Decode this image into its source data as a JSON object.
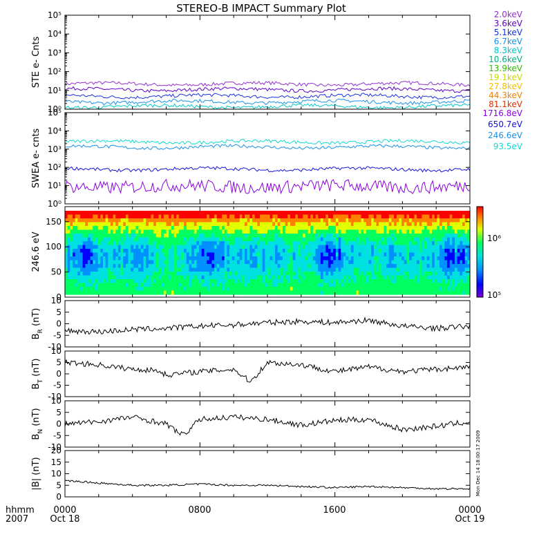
{
  "title": "STEREO-B IMPACT Summary Plot",
  "time_axis": {
    "corner_top": "hhmm",
    "corner_bottom": "2007",
    "ticks": [
      {
        "time": "0000",
        "date": "Oct 18"
      },
      {
        "time": "0800",
        "date": ""
      },
      {
        "time": "1600",
        "date": ""
      },
      {
        "time": "0000",
        "date": "Oct 19"
      }
    ]
  },
  "side_note": "Mon Dec 14 18:00:17 2009",
  "colorbar": {
    "labels": [
      "10⁶",
      "10⁵"
    ],
    "label_values": [
      1000000,
      100000
    ],
    "range": [
      80000,
      2500000
    ],
    "scale": "log",
    "colors": [
      "#7a00d8",
      "#0000ff",
      "#0090ff",
      "#00e0e0",
      "#00ff60",
      "#e0ff00",
      "#ff8000",
      "#ff0000"
    ]
  },
  "legend": {
    "ste": [
      {
        "label": "2.0keV",
        "color": "#9030d0"
      },
      {
        "label": "3.6keV",
        "color": "#5b00c8"
      },
      {
        "label": "5.1keV",
        "color": "#1a30e0"
      },
      {
        "label": "6.7keV",
        "color": "#1890e8"
      },
      {
        "label": "8.3keV",
        "color": "#00c8c8"
      },
      {
        "label": "10.6keV",
        "color": "#00b080"
      },
      {
        "label": "13.9keV",
        "color": "#30c000"
      },
      {
        "label": "19.1keV",
        "color": "#c8d800"
      },
      {
        "label": "27.8keV",
        "color": "#f0c000"
      },
      {
        "label": "44.3keV",
        "color": "#f08000"
      },
      {
        "label": "81.1keV",
        "color": "#e03000"
      }
    ],
    "swea": [
      {
        "label": "1716.8eV",
        "color": "#8a00e0"
      },
      {
        "label": "650.7eV",
        "color": "#1010d8"
      },
      {
        "label": "246.6eV",
        "color": "#1890e8"
      },
      {
        "label": "93.5eV",
        "color": "#10d8d0"
      }
    ]
  },
  "chart_data": [
    {
      "type": "line",
      "panel": "ste",
      "ylabel": "STE e- Cnts",
      "yscale": "log",
      "ylim": [
        1,
        100000
      ],
      "ytick_labels": [
        "10⁰",
        "10¹",
        "10²",
        "10³",
        "10⁴",
        "10⁵"
      ],
      "xlim": [
        "2007-10-18 00:00",
        "2007-10-19 00:00"
      ],
      "series": [
        {
          "name": "2.0keV",
          "color": "#9030d0",
          "level": 22
        },
        {
          "name": "3.6keV",
          "color": "#5b00c8",
          "level": 11
        },
        {
          "name": "5.1keV",
          "color": "#1a30e0",
          "level": 5
        },
        {
          "name": "6.7keV",
          "color": "#1890e8",
          "level": 2.5
        },
        {
          "name": "8.3keV",
          "color": "#00c8c8",
          "level": 1.4
        }
      ]
    },
    {
      "type": "line",
      "panel": "swea",
      "ylabel": "SWEA e- cnts",
      "yscale": "log",
      "ylim": [
        1,
        100000
      ],
      "ytick_labels": [
        "10⁰",
        "10¹",
        "10²",
        "10³",
        "10⁴",
        "10⁵"
      ],
      "xlim": [
        "2007-10-18 00:00",
        "2007-10-19 00:00"
      ],
      "series": [
        {
          "name": "93.5eV",
          "color": "#10d8d0",
          "level": 2500
        },
        {
          "name": "246.6eV",
          "color": "#1890e8",
          "level": 1300
        },
        {
          "name": "650.7eV",
          "color": "#1010d8",
          "level": 80
        },
        {
          "name": "1716.8eV",
          "color": "#8a00e0",
          "level": 9
        }
      ]
    },
    {
      "type": "heatmap",
      "panel": "pad",
      "ylabel": "246.6 eV",
      "ylim": [
        0,
        180
      ],
      "ytick_labels": [
        "0",
        "50",
        "100",
        "150"
      ],
      "ytick_values": [
        0,
        50,
        100,
        150
      ],
      "xlim": [
        "2007-10-18 00:00",
        "2007-10-19 00:00"
      ],
      "z_range": [
        80000,
        2500000
      ]
    },
    {
      "type": "line",
      "panel": "br",
      "ylabel": "B_R (nT)",
      "ylim": [
        -10,
        10
      ],
      "ytick_labels": [
        "10",
        "5",
        "0",
        "-5",
        "-10"
      ],
      "ytick_values": [
        10,
        5,
        0,
        -5,
        -10
      ],
      "x": [
        0,
        2,
        4,
        6,
        8,
        10,
        12,
        14,
        16,
        18,
        20,
        22,
        24
      ],
      "values": [
        -3,
        -3.5,
        -2.5,
        -2,
        -1,
        -0.5,
        0.5,
        1,
        0.5,
        1.5,
        -1,
        -2,
        -1
      ],
      "color": "#000000"
    },
    {
      "type": "line",
      "panel": "bt",
      "ylabel": "B_T (nT)",
      "ylim": [
        -10,
        10
      ],
      "ytick_labels": [
        "10",
        "5",
        "0",
        "-5",
        "-10"
      ],
      "ytick_values": [
        10,
        5,
        0,
        -5,
        -10
      ],
      "x": [
        0,
        2,
        4,
        5.5,
        6,
        8,
        10,
        11,
        12,
        14,
        16,
        18,
        20,
        22,
        24
      ],
      "values": [
        5,
        4,
        2,
        1.5,
        -0.5,
        1,
        2,
        -3.5,
        5,
        4,
        1,
        3,
        1,
        2,
        3
      ],
      "color": "#000000"
    },
    {
      "type": "line",
      "panel": "bn",
      "ylabel": "B_N (nT)",
      "ylim": [
        -10,
        10
      ],
      "ytick_labels": [
        "10",
        "5",
        "0",
        "-5",
        "-10"
      ],
      "ytick_values": [
        10,
        5,
        0,
        -5,
        -10
      ],
      "x": [
        0,
        2,
        4,
        6,
        7,
        8,
        10,
        12,
        14,
        16,
        18,
        20,
        22,
        24
      ],
      "values": [
        0,
        1,
        3,
        0,
        -5,
        2,
        3,
        2,
        -0.5,
        1.5,
        2,
        -2.5,
        -1,
        1
      ],
      "color": "#000000"
    },
    {
      "type": "line",
      "panel": "bmag",
      "ylabel": "|B| (nT)",
      "ylim": [
        0,
        20
      ],
      "ytick_labels": [
        "20",
        "15",
        "10",
        "5",
        "0"
      ],
      "ytick_values": [
        20,
        15,
        10,
        5,
        0
      ],
      "x": [
        0,
        2,
        4,
        6,
        8,
        10,
        12,
        14,
        16,
        18,
        20,
        22,
        24
      ],
      "values": [
        7,
        6,
        5,
        5,
        5.5,
        5,
        5,
        4.5,
        4,
        4.5,
        4,
        3.5,
        3.5
      ],
      "color": "#000000"
    }
  ]
}
